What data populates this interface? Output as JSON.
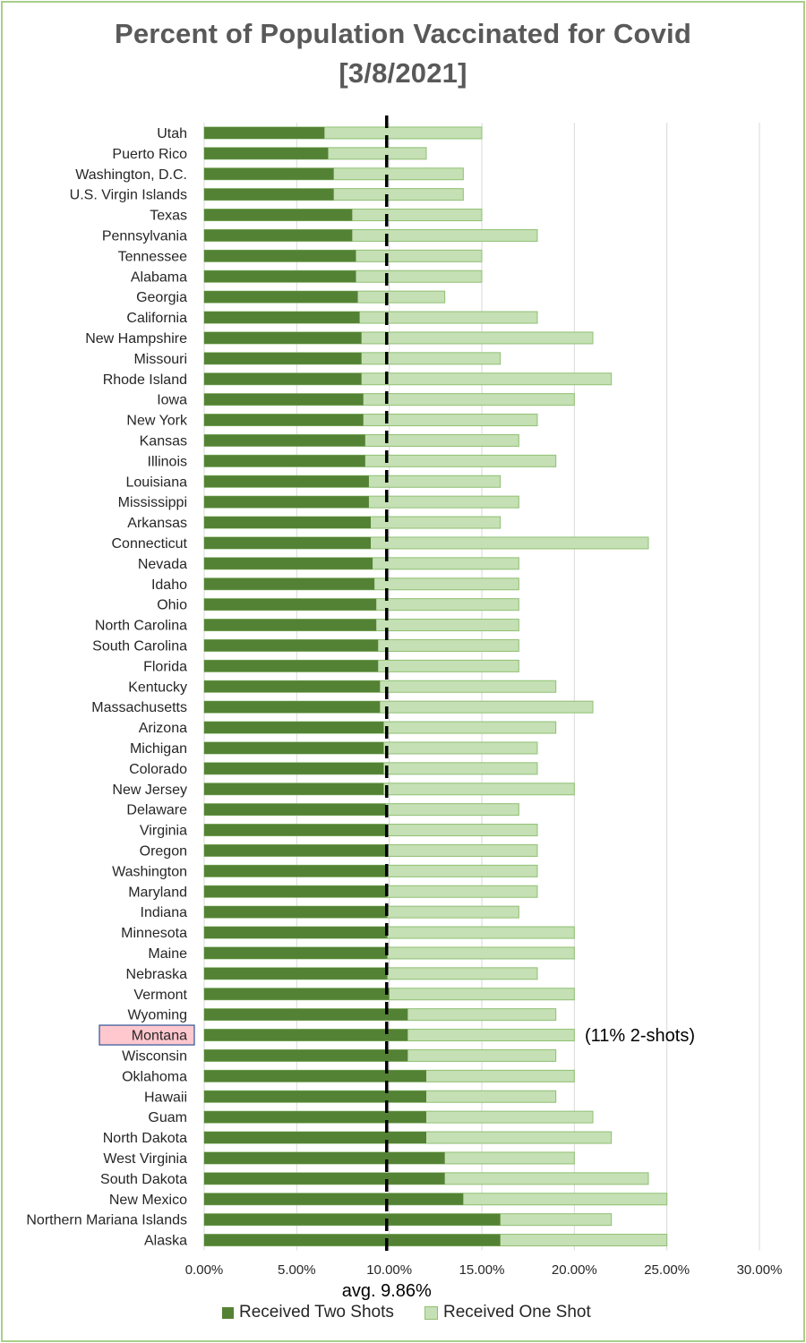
{
  "colors": {
    "two_shots": "#548235",
    "one_shot": "#c5e0b4",
    "one_shot_border": "#8fc073",
    "highlight_fill": "#ffc7ce",
    "highlight_border": "#2f5597",
    "grid": "#d9d9d9",
    "avg_line": "#000000"
  },
  "chart_data": {
    "type": "bar",
    "orientation": "horizontal",
    "stacked": false,
    "title": "Percent of Population Vaccinated for Covid",
    "subtitle": "[3/8/2021]",
    "xlim": [
      0,
      30
    ],
    "x_ticks": [
      0,
      5,
      10,
      15,
      20,
      25,
      30
    ],
    "x_tick_labels": [
      "0.00%",
      "5.00%",
      "10.00%",
      "15.00%",
      "20.00%",
      "25.00%",
      "30.00%"
    ],
    "grid": true,
    "legend_position": "bottom",
    "categories": [
      "Utah",
      "Puerto Rico",
      "Washington, D.C.",
      "U.S. Virgin Islands",
      "Texas",
      "Pennsylvania",
      "Tennessee",
      "Alabama",
      "Georgia",
      "California",
      "New Hampshire",
      "Missouri",
      "Rhode Island",
      "Iowa",
      "New York",
      "Kansas",
      "Illinois",
      "Louisiana",
      "Mississippi",
      "Arkansas",
      "Connecticut",
      "Nevada",
      "Idaho",
      "Ohio",
      "North Carolina",
      "South Carolina",
      "Florida",
      "Kentucky",
      "Massachusetts",
      "Arizona",
      "Michigan",
      "Colorado",
      "New Jersey",
      "Delaware",
      "Virginia",
      "Oregon",
      "Washington",
      "Maryland",
      "Indiana",
      "Minnesota",
      "Maine",
      "Nebraska",
      "Vermont",
      "Wyoming",
      "Montana",
      "Wisconsin",
      "Oklahoma",
      "Hawaii",
      "Guam",
      "North Dakota",
      "West Virginia",
      "South Dakota",
      "New Mexico",
      "Northern Mariana Islands",
      "Alaska"
    ],
    "series": [
      {
        "name": "Received Two Shots",
        "values": [
          6.5,
          6.7,
          7.0,
          7.0,
          8.0,
          8.0,
          8.2,
          8.2,
          8.3,
          8.4,
          8.5,
          8.5,
          8.5,
          8.6,
          8.6,
          8.7,
          8.7,
          8.9,
          8.9,
          9.0,
          9.0,
          9.1,
          9.2,
          9.3,
          9.3,
          9.4,
          9.4,
          9.5,
          9.5,
          9.7,
          9.7,
          9.7,
          9.7,
          9.8,
          9.8,
          9.8,
          9.9,
          9.9,
          9.9,
          9.9,
          9.9,
          9.9,
          10.0,
          11.0,
          11.0,
          11.0,
          12.0,
          12.0,
          12.0,
          12.0,
          13.0,
          13.0,
          14.0,
          16.0,
          16.0
        ]
      },
      {
        "name": "Received One Shot",
        "values": [
          15,
          12,
          14,
          14,
          15,
          18,
          15,
          15,
          13,
          18,
          21,
          16,
          22,
          20,
          18,
          17,
          19,
          16,
          17,
          16,
          24,
          17,
          17,
          17,
          17,
          17,
          17,
          19,
          21,
          19,
          18,
          18,
          20,
          17,
          18,
          18,
          18,
          18,
          17,
          20,
          20,
          18,
          20,
          19,
          20,
          19,
          20,
          19,
          21,
          22,
          20,
          24,
          25,
          22,
          25
        ]
      }
    ],
    "average": {
      "value": 9.86,
      "label": "avg. 9.86%"
    },
    "highlight": {
      "category": "Montana",
      "annotation": "(11% 2-shots)"
    }
  }
}
